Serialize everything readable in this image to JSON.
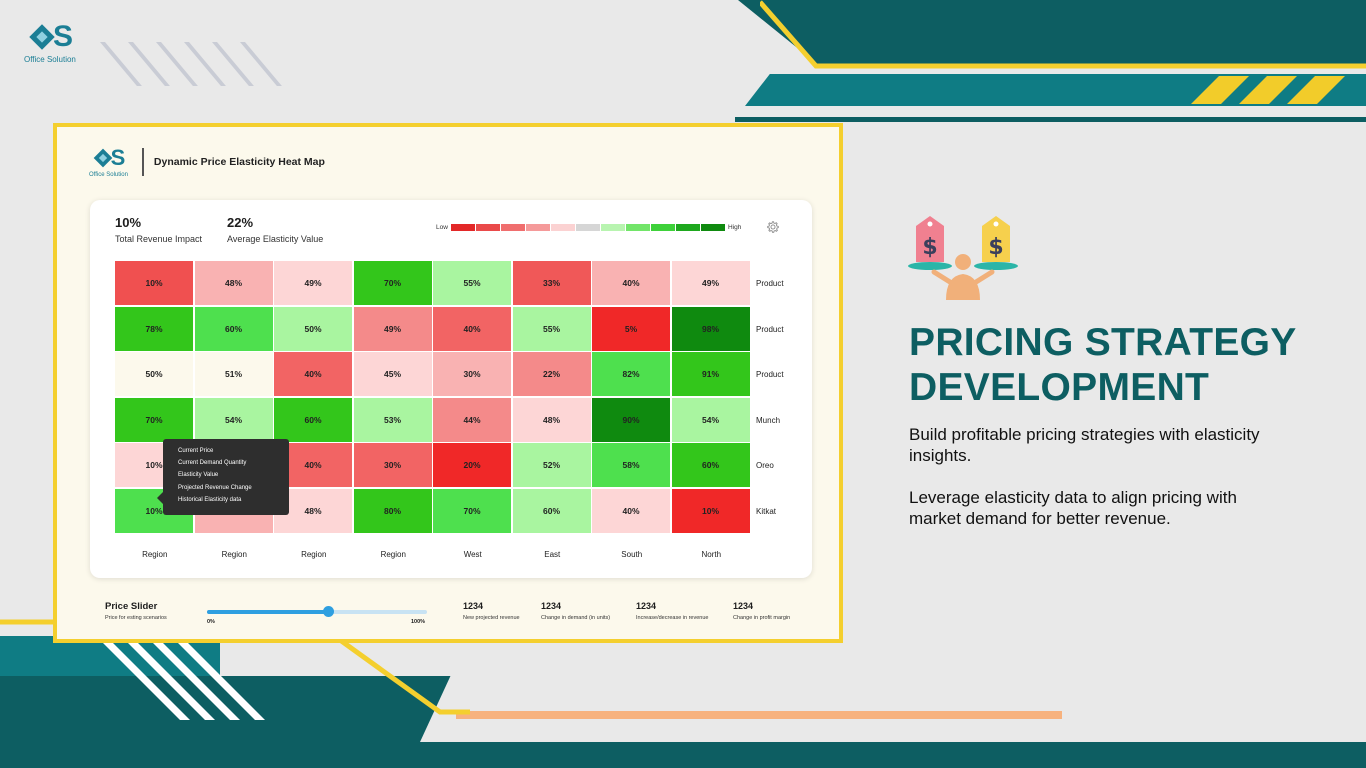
{
  "brand": {
    "logo_text": "Office Solution",
    "logo_letters": "S"
  },
  "dashboard": {
    "title": "Dynamic Price Elasticity Heat Map",
    "kpis": [
      {
        "value": "10%",
        "label": "Total Revenue Impact"
      },
      {
        "value": "22%",
        "label": "Average Elasticity Value"
      }
    ],
    "legend": {
      "low": "Low",
      "high": "High",
      "colors": [
        "#e32828",
        "#ea4a4a",
        "#f06e6e",
        "#f59a9a",
        "#fbd2d2",
        "#d6d6d6",
        "#b8f4b0",
        "#72e569",
        "#3ed13a",
        "#1ea81e",
        "#0f8a0f"
      ]
    },
    "row_labels": [
      "Product",
      "Product",
      "Product",
      "Munch",
      "Oreo",
      "Kitkat"
    ],
    "col_labels": [
      "Region",
      "Region",
      "Region",
      "Region",
      "West",
      "East",
      "South",
      "North"
    ],
    "cells": [
      [
        {
          "v": "10%",
          "c": "#f05050"
        },
        {
          "v": "48%",
          "c": "#f9b2b2"
        },
        {
          "v": "49%",
          "c": "#fdd6d6"
        },
        {
          "v": "70%",
          "c": "#33c61b"
        },
        {
          "v": "55%",
          "c": "#a9f5a0"
        },
        {
          "v": "33%",
          "c": "#f05858"
        },
        {
          "v": "40%",
          "c": "#f9b2b2"
        },
        {
          "v": "49%",
          "c": "#fdd6d6"
        }
      ],
      [
        {
          "v": "78%",
          "c": "#33c61b"
        },
        {
          "v": "60%",
          "c": "#4ee04e"
        },
        {
          "v": "50%",
          "c": "#a9f5a0"
        },
        {
          "v": "49%",
          "c": "#f48a8a"
        },
        {
          "v": "40%",
          "c": "#f26464"
        },
        {
          "v": "55%",
          "c": "#a9f5a0"
        },
        {
          "v": "5%",
          "c": "#f02828"
        },
        {
          "v": "98%",
          "c": "#0f8a0f"
        }
      ],
      [
        {
          "v": "50%",
          "c": "#fcf9ec"
        },
        {
          "v": "51%",
          "c": "#fcf9ec"
        },
        {
          "v": "40%",
          "c": "#f26464"
        },
        {
          "v": "45%",
          "c": "#fdd6d6"
        },
        {
          "v": "30%",
          "c": "#f9b2b2"
        },
        {
          "v": "22%",
          "c": "#f48a8a"
        },
        {
          "v": "82%",
          "c": "#4ee04e"
        },
        {
          "v": "91%",
          "c": "#33c61b"
        }
      ],
      [
        {
          "v": "70%",
          "c": "#33c61b"
        },
        {
          "v": "54%",
          "c": "#a9f5a0"
        },
        {
          "v": "60%",
          "c": "#33c61b"
        },
        {
          "v": "53%",
          "c": "#a9f5a0"
        },
        {
          "v": "44%",
          "c": "#f48a8a"
        },
        {
          "v": "48%",
          "c": "#fdd6d6"
        },
        {
          "v": "90%",
          "c": "#0f8a0f"
        },
        {
          "v": "54%",
          "c": "#a9f5a0"
        }
      ],
      [
        {
          "v": "10%",
          "c": "#fdd6d6"
        },
        {
          "v": "",
          "c": "#f9b2b2"
        },
        {
          "v": "40%",
          "c": "#f26464"
        },
        {
          "v": "30%",
          "c": "#f26464"
        },
        {
          "v": "20%",
          "c": "#f02828"
        },
        {
          "v": "52%",
          "c": "#a9f5a0"
        },
        {
          "v": "58%",
          "c": "#4ee04e"
        },
        {
          "v": "60%",
          "c": "#33c61b"
        }
      ],
      [
        {
          "v": "10%",
          "c": "#4ee04e"
        },
        {
          "v": "",
          "c": "#f9b2b2"
        },
        {
          "v": "48%",
          "c": "#fdd6d6"
        },
        {
          "v": "80%",
          "c": "#33c61b"
        },
        {
          "v": "70%",
          "c": "#4ee04e"
        },
        {
          "v": "60%",
          "c": "#a9f5a0"
        },
        {
          "v": "40%",
          "c": "#fdd6d6"
        },
        {
          "v": "10%",
          "c": "#f02828"
        }
      ]
    ],
    "tooltip": [
      "Current Price",
      "Current Demand Quantity",
      "Elasticity Value",
      "Projected Revenue Change",
      "Historical Elasticity data"
    ],
    "slider": {
      "title": "Price Slider",
      "subtitle": "Price for esting scenarios",
      "min_label": "0%",
      "max_label": "100%",
      "value_fraction": 0.55
    },
    "metrics": [
      {
        "value": "1234",
        "label": "New projected revenue"
      },
      {
        "value": "1234",
        "label": "Change in demand (in units)"
      },
      {
        "value": "1234",
        "label": "Increase/decrease in revenue"
      },
      {
        "value": "1234",
        "label": "Change in profit margin"
      }
    ]
  },
  "hero": {
    "title_line1": "PRICING STRATEGY",
    "title_line2": "DEVELOPMENT",
    "para1": "Build profitable pricing strategies with elasticity insights.",
    "para2": "Leverage elasticity data to align pricing with market demand for better revenue."
  },
  "colors": {
    "teal_dark": "#0d5e62",
    "teal": "#0f7c84",
    "yellow": "#f4cf2e",
    "orange": "#f7b27e"
  }
}
